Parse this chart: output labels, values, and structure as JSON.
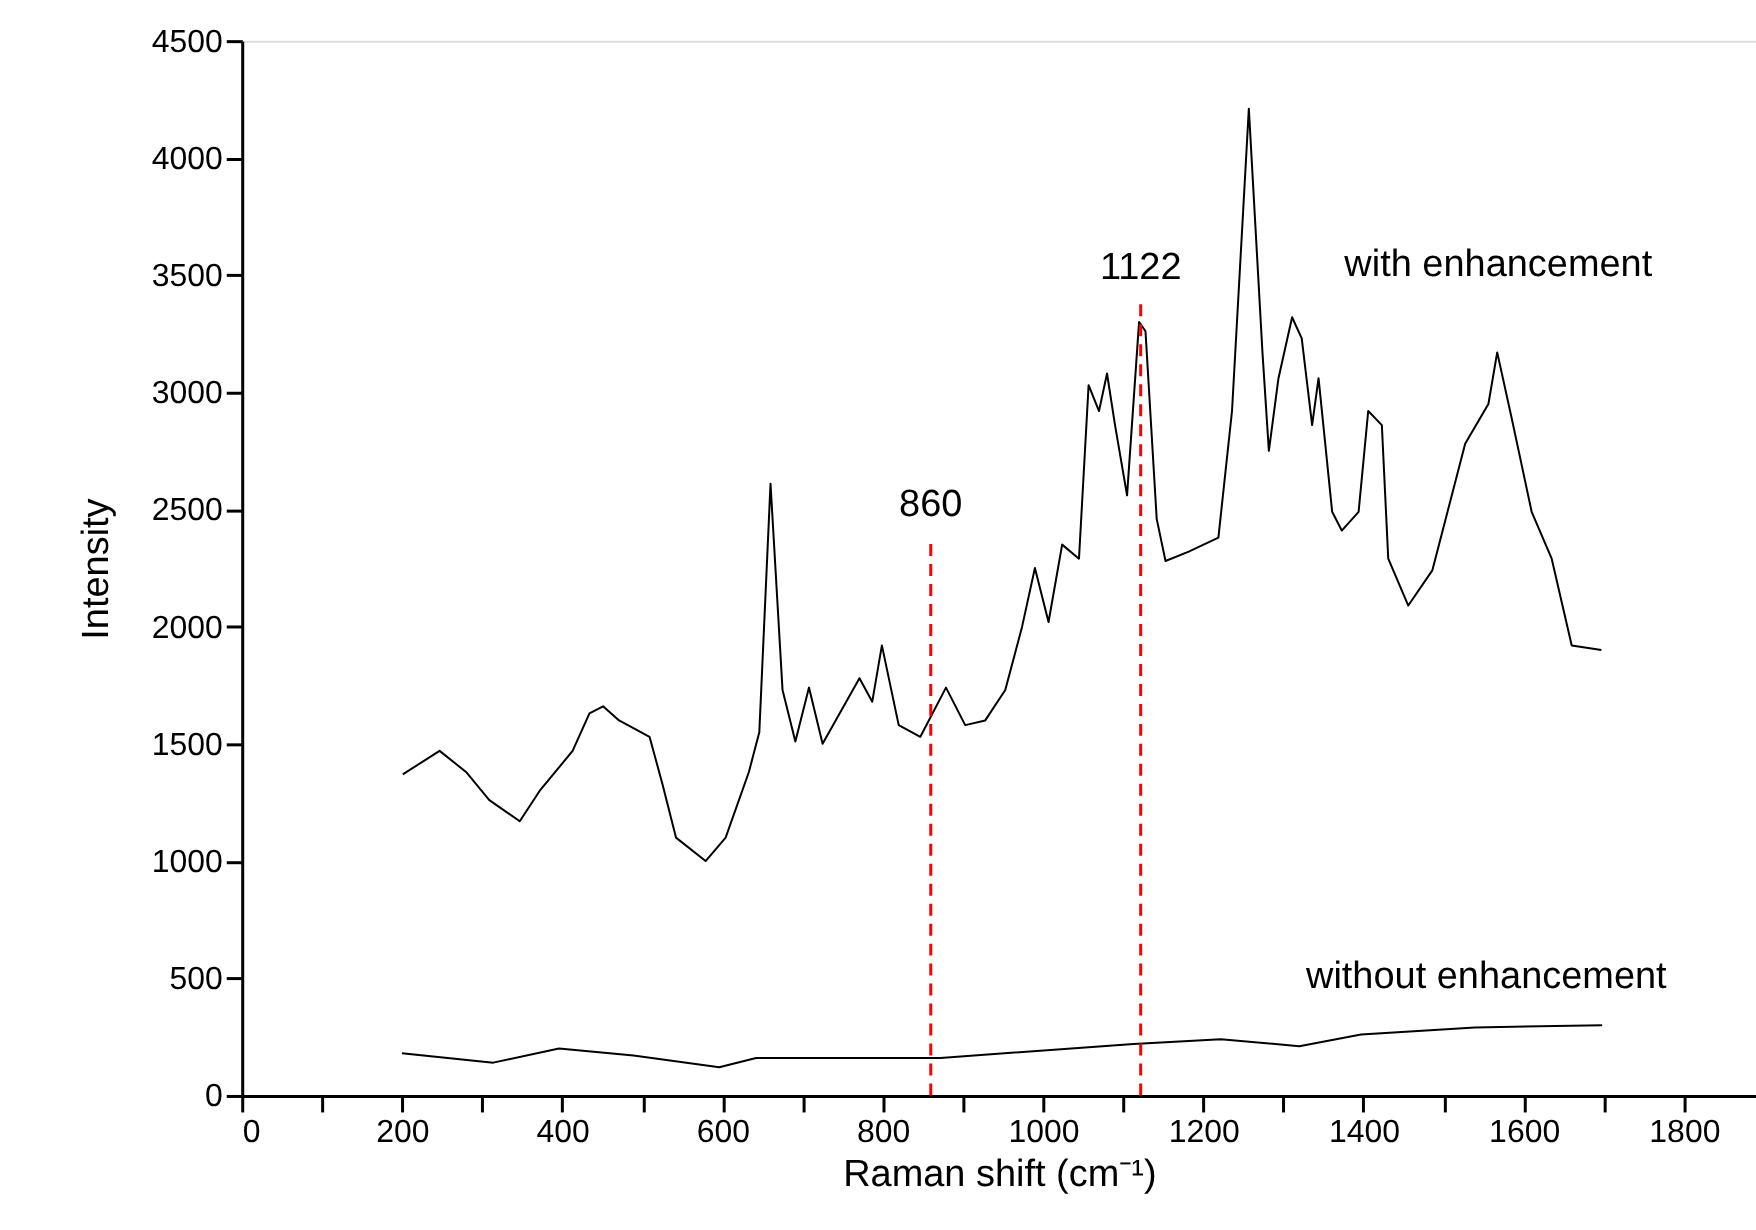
{
  "chart_data": {
    "type": "line",
    "xlabel": "Raman shift (cm⁻¹)",
    "ylabel": "Intensity",
    "xlim": [
      0,
      1890
    ],
    "ylim": [
      0,
      4500
    ],
    "xticks": [
      0,
      {
        "value": 100,
        "label": null
      },
      200,
      {
        "value": 300,
        "label": null
      },
      400,
      {
        "value": 500,
        "label": null
      },
      600,
      {
        "value": 700,
        "label": null
      },
      800,
      {
        "value": 900,
        "label": null
      },
      1000,
      {
        "value": 1100,
        "label": null
      },
      1200,
      {
        "value": 1300,
        "label": null
      },
      1400,
      {
        "value": 1500,
        "label": null
      },
      1600,
      {
        "value": 1700,
        "label": null
      },
      1800
    ],
    "yticks": [
      0,
      500,
      1000,
      1500,
      2000,
      2500,
      3000,
      3500,
      4000,
      4500
    ],
    "grid": false,
    "legend": false,
    "marker": "none",
    "line_style": "solid",
    "series": [
      {
        "color": "#000000",
        "x": [
          201,
          247,
          280,
          309,
          347,
          372,
          413,
          434,
          451,
          471,
          509,
          525,
          542,
          579,
          604,
          633,
          646,
          660,
          675,
          691,
          708,
          725,
          771,
          787,
          799,
          820,
          847,
          879,
          903,
          928,
          953,
          974,
          990,
          1007,
          1024,
          1045,
          1057,
          1070,
          1080,
          1090,
          1105,
          1120,
          1128,
          1142,
          1153,
          1182,
          1219,
          1236,
          1257,
          1274,
          1282,
          1294,
          1311,
          1323,
          1336,
          1344,
          1361,
          1373,
          1394,
          1406,
          1423,
          1431,
          1456,
          1486,
          1527,
          1556,
          1567,
          1585,
          1610,
          1635,
          1660,
          1697
        ],
        "values": [
          1370,
          1470,
          1380,
          1260,
          1170,
          1300,
          1470,
          1630,
          1660,
          1600,
          1530,
          1330,
          1100,
          1000,
          1100,
          1380,
          1550,
          2610,
          1730,
          1510,
          1740,
          1500,
          1780,
          1680,
          1920,
          1580,
          1530,
          1740,
          1580,
          1600,
          1730,
          2000,
          2250,
          2020,
          2350,
          2290,
          3030,
          2920,
          3080,
          2860,
          2560,
          3300,
          3260,
          2460,
          2280,
          2320,
          2380,
          2920,
          4210,
          3170,
          2750,
          3060,
          3320,
          3230,
          2860,
          3060,
          2490,
          2410,
          2490,
          2920,
          2860,
          2290,
          2090,
          2240,
          2780,
          2950,
          3170,
          2890,
          2490,
          2290,
          1920,
          1900
        ]
      },
      {
        "color": "#000000",
        "x": [
          200,
          314,
          396,
          489,
          596,
          642,
          872,
          1113,
          1222,
          1320,
          1397,
          1539,
          1698
        ],
        "values": [
          180,
          140,
          200,
          170,
          120,
          160,
          160,
          220,
          240,
          210,
          260,
          290,
          300
        ]
      }
    ],
    "ref_lines": [
      {
        "axis": "x",
        "value": 860,
        "label": "860",
        "color": "#ff0000",
        "line_style": "dashed"
      },
      {
        "axis": "x",
        "value": 1122,
        "label": "1122",
        "color": "#ff0000",
        "line_style": "dashed"
      }
    ],
    "annotations": [
      "with enhancement",
      "without enhancement"
    ]
  }
}
